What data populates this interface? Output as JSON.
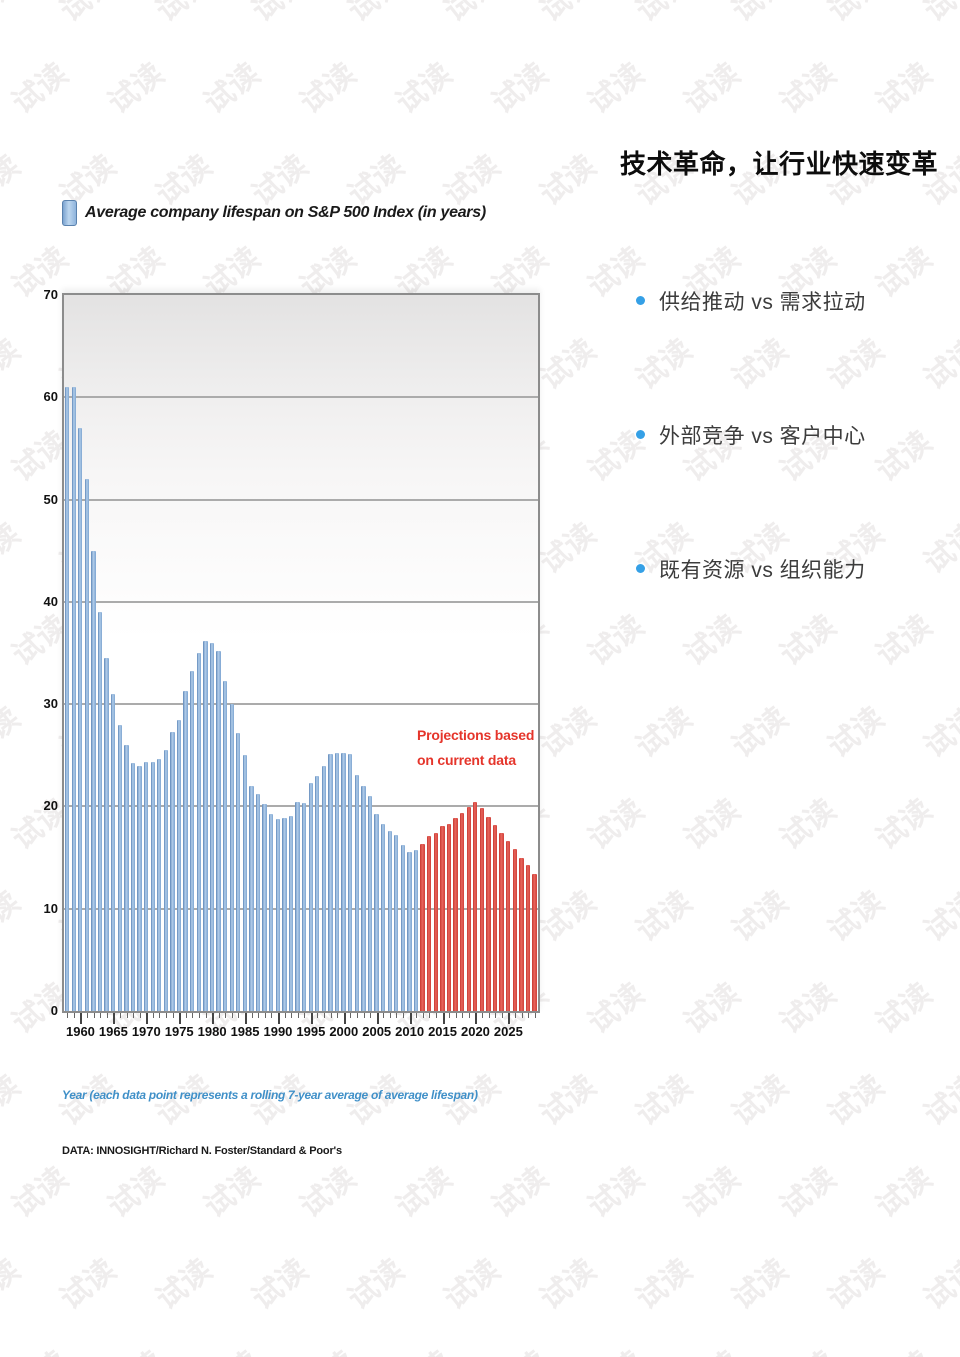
{
  "watermark": {
    "text": "试读"
  },
  "headline": "技术革命，让行业快速变革",
  "bullets": [
    {
      "label": "供给推动 vs 需求拉动"
    },
    {
      "label": "外部竞争 vs 客户中心"
    },
    {
      "label": "既有资源 vs 组织能力"
    }
  ],
  "chart": {
    "annotation_line1": "Projections based",
    "annotation_line2": "on current data"
  },
  "chart_data": {
    "type": "bar",
    "title": "Average company lifespan on S&P 500 Index (in years)",
    "xlabel": "Year (each data point represents a rolling 7-year average of average lifespan)",
    "ylabel": "",
    "source": "DATA: INNOSIGHT/Richard N. Foster/Standard & Poor's",
    "annotation": "Projections based on current data",
    "ylim": [
      0,
      70
    ],
    "yticks": [
      0,
      10,
      20,
      30,
      40,
      50,
      60,
      70
    ],
    "xtick_labels": [
      "1960",
      "1965",
      "1970",
      "1975",
      "1980",
      "1985",
      "1990",
      "1995",
      "2000",
      "2005",
      "2010",
      "2015",
      "2020",
      "2025"
    ],
    "grid": true,
    "legend_position": "none",
    "projection_start_year": 2012,
    "colors": {
      "historical_bar": "#6f97c5",
      "projection_bar": "#d8443c",
      "annotation": "#e5352b",
      "caption": "#4090c8"
    },
    "years": [
      1958,
      1959,
      1960,
      1961,
      1962,
      1963,
      1964,
      1965,
      1966,
      1967,
      1968,
      1969,
      1970,
      1971,
      1972,
      1973,
      1974,
      1975,
      1976,
      1977,
      1978,
      1979,
      1980,
      1981,
      1982,
      1983,
      1984,
      1985,
      1986,
      1987,
      1988,
      1989,
      1990,
      1991,
      1992,
      1993,
      1994,
      1995,
      1996,
      1997,
      1998,
      1999,
      2000,
      2001,
      2002,
      2003,
      2004,
      2005,
      2006,
      2007,
      2008,
      2009,
      2010,
      2011,
      2012,
      2013,
      2014,
      2015,
      2016,
      2017,
      2018,
      2019,
      2020,
      2021,
      2022,
      2023,
      2024,
      2025,
      2026,
      2027,
      2028,
      2029
    ],
    "values": [
      61,
      61,
      57,
      52,
      45,
      39,
      34.5,
      31,
      28,
      26,
      24.2,
      24,
      24.3,
      24.3,
      24.6,
      25.5,
      27.3,
      28.5,
      31.3,
      33.2,
      35,
      36.2,
      36,
      35.2,
      32.3,
      30,
      27.2,
      25,
      22,
      21.2,
      20.2,
      19.3,
      18.8,
      18.9,
      19.1,
      20.4,
      20.3,
      22.3,
      23,
      24,
      25.1,
      25.2,
      25.2,
      25.1,
      23.1,
      22,
      21,
      19.3,
      18.3,
      17.6,
      17.2,
      16.2,
      15.5,
      15.7,
      16.3,
      17.1,
      17.4,
      18.1,
      18.3,
      18.9,
      19.4,
      19.9,
      20.4,
      19.8,
      19,
      18.2,
      17.4,
      16.6,
      15.8,
      15,
      14.3,
      13.4
    ]
  }
}
